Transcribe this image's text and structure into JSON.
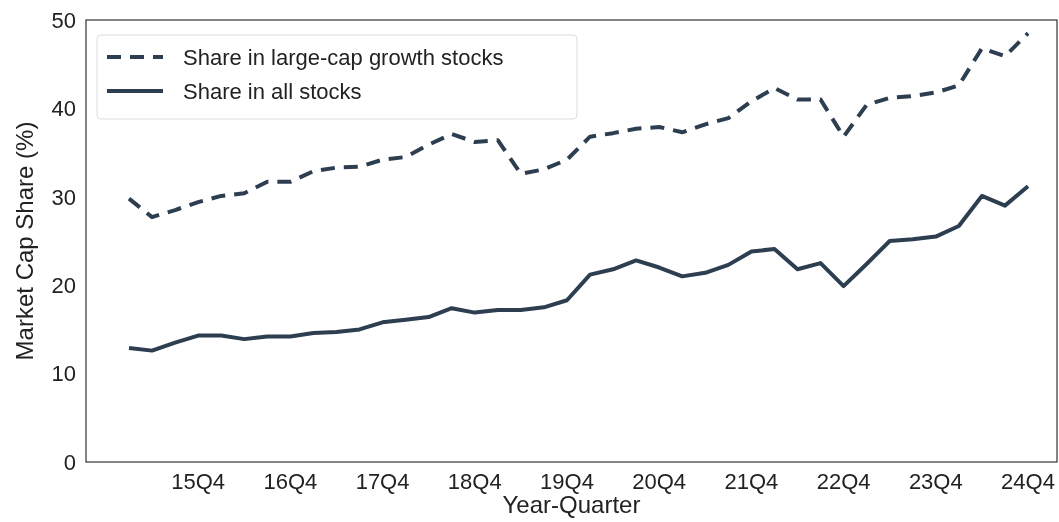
{
  "chart_data": {
    "type": "line",
    "xlabel": "Year-Quarter",
    "ylabel": "Market Cap Share (%)",
    "categories": [
      null,
      null,
      null,
      "15Q4",
      null,
      null,
      null,
      "16Q4",
      null,
      null,
      null,
      "17Q4",
      null,
      null,
      null,
      "18Q4",
      null,
      null,
      null,
      "19Q4",
      null,
      null,
      null,
      "20Q4",
      null,
      null,
      null,
      "21Q4",
      null,
      null,
      null,
      "22Q4",
      null,
      null,
      null,
      "23Q4",
      null,
      null,
      null,
      "24Q4"
    ],
    "series": [
      {
        "name": "Share in large-cap growth stocks",
        "color": "#2c3e50",
        "line_style": "dashed",
        "values": [
          29.8,
          27.7,
          28.5,
          29.4,
          30.1,
          30.4,
          31.7,
          31.7,
          32.9,
          33.3,
          33.4,
          34.2,
          34.5,
          35.9,
          37.1,
          36.2,
          36.4,
          32.6,
          33.1,
          34.2,
          36.8,
          37.2,
          37.7,
          37.9,
          37.3,
          38.2,
          38.9,
          40.8,
          42.3,
          41.0,
          41.0,
          36.8,
          40.4,
          41.2,
          41.4,
          41.8,
          42.6,
          46.8,
          45.9,
          48.5
        ]
      },
      {
        "name": "Share in all stocks",
        "color": "#2c3e50",
        "line_style": "solid",
        "values": [
          12.9,
          12.6,
          13.5,
          14.3,
          14.3,
          13.9,
          14.2,
          14.2,
          14.6,
          14.7,
          15.0,
          15.8,
          16.1,
          16.4,
          17.4,
          16.9,
          17.2,
          17.2,
          17.5,
          18.3,
          21.2,
          21.8,
          22.8,
          22.0,
          21.0,
          21.4,
          22.3,
          23.8,
          24.1,
          21.8,
          22.5,
          19.9,
          22.4,
          25.0,
          25.2,
          25.5,
          26.7,
          30.1,
          29.0,
          31.2
        ]
      }
    ],
    "ylim": [
      0,
      50
    ],
    "yticks": [
      0,
      10,
      20,
      30,
      40,
      50
    ],
    "legend": "top left",
    "grid": false
  }
}
